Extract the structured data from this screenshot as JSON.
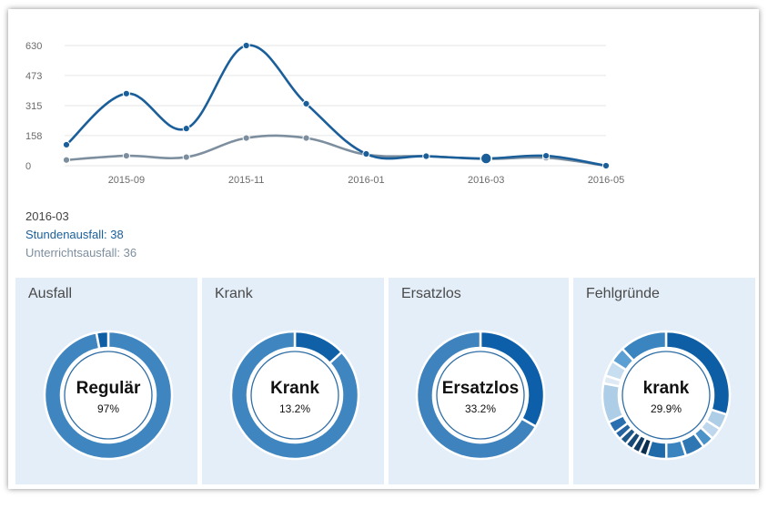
{
  "chart_data": [
    {
      "type": "line",
      "x": [
        "2015-08",
        "2015-09",
        "2015-10",
        "2015-11",
        "2015-12",
        "2016-01",
        "2016-02",
        "2016-03",
        "2016-04",
        "2016-05"
      ],
      "x_tick_labels": [
        "2015-09",
        "2015-11",
        "2016-01",
        "2016-03",
        "2016-05"
      ],
      "y_tick_labels": [
        "0",
        "158",
        "315",
        "473",
        "630"
      ],
      "ylim": [
        0,
        630
      ],
      "grid": true,
      "series": [
        {
          "name": "Stundenausfall",
          "color": "#1a5e9a",
          "values": [
            110,
            378,
            195,
            630,
            325,
            62,
            50,
            38,
            52,
            0
          ]
        },
        {
          "name": "Unterrichtsausfall",
          "color": "#7d8f9f",
          "values": [
            30,
            52,
            45,
            145,
            145,
            58,
            50,
            36,
            42,
            0
          ]
        }
      ],
      "highlighted_index": 7
    },
    {
      "type": "pie",
      "title": "Ausfall",
      "center_label": "Regulär",
      "center_value": "97%",
      "slices": [
        97,
        3
      ],
      "colors": [
        "#3f86c0",
        "#0e5ea6"
      ]
    },
    {
      "type": "pie",
      "title": "Krank",
      "center_label": "Krank",
      "center_value": "13.2%",
      "slices": [
        13.2,
        86.8
      ],
      "colors": [
        "#1060a8",
        "#3f86c0"
      ]
    },
    {
      "type": "pie",
      "title": "Ersatzlos",
      "center_label": "Ersatzlos",
      "center_value": "33.2%",
      "slices": [
        33.2,
        66.8
      ],
      "colors": [
        "#0c5fa8",
        "#3e83be"
      ]
    },
    {
      "type": "pie",
      "title": "Fehlgründe",
      "center_label": "krank",
      "center_value": "29.9%",
      "slices": [
        29.9,
        4,
        3,
        3,
        5,
        5,
        5,
        2,
        2,
        2,
        2,
        2,
        3,
        10,
        2,
        4,
        4,
        12
      ],
      "colors": [
        "#0e5ea6",
        "#aecde6",
        "#bed7ec",
        "#4b92c8",
        "#2f77b2",
        "#3a84bf",
        "#1f6aa8",
        "#0b2d4e",
        "#123c64",
        "#184a78",
        "#1d5688",
        "#2464a0",
        "#2a6fb0",
        "#aecde6",
        "#dfeaf4",
        "#c7ddf0",
        "#5c9fd2",
        "#3a84bf"
      ]
    }
  ],
  "tooltip": {
    "date": "2016-03",
    "line1": "Stundenausfall: 38",
    "line2": "Unterrichtsausfall: 36"
  }
}
